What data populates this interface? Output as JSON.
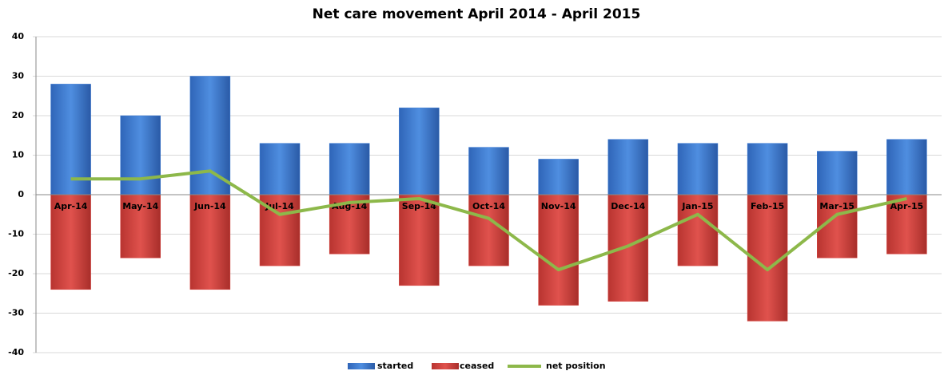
{
  "chart_data": {
    "type": "bar",
    "title": "Net care movement April 2014 - April 2015",
    "categories": [
      "Apr-14",
      "May-14",
      "Jun-14",
      "Jul-14",
      "Aug-14",
      "Sep-14",
      "Oct-14",
      "Nov-14",
      "Dec-14",
      "Jan-15",
      "Feb-15",
      "Mar-15",
      "Apr-15"
    ],
    "series": [
      {
        "name": "started",
        "color": "#3a7bd5",
        "values": [
          28,
          20,
          30,
          13,
          13,
          22,
          12,
          9,
          14,
          13,
          13,
          11,
          14
        ]
      },
      {
        "name": "ceased",
        "color": "#d9433f",
        "values": [
          -24,
          -16,
          -24,
          -18,
          -15,
          -23,
          -18,
          -28,
          -27,
          -18,
          -32,
          -16,
          -15
        ]
      },
      {
        "name": "net position",
        "color": "#8db84a",
        "type": "line",
        "values": [
          4,
          4,
          6,
          -5,
          -2,
          -1,
          -6,
          -19,
          -13,
          -5,
          -19,
          -5,
          -1
        ]
      }
    ],
    "ylim": [
      -40,
      40
    ],
    "yticks": [
      -40,
      -30,
      -20,
      -10,
      0,
      10,
      20,
      30,
      40
    ],
    "grid": true
  }
}
